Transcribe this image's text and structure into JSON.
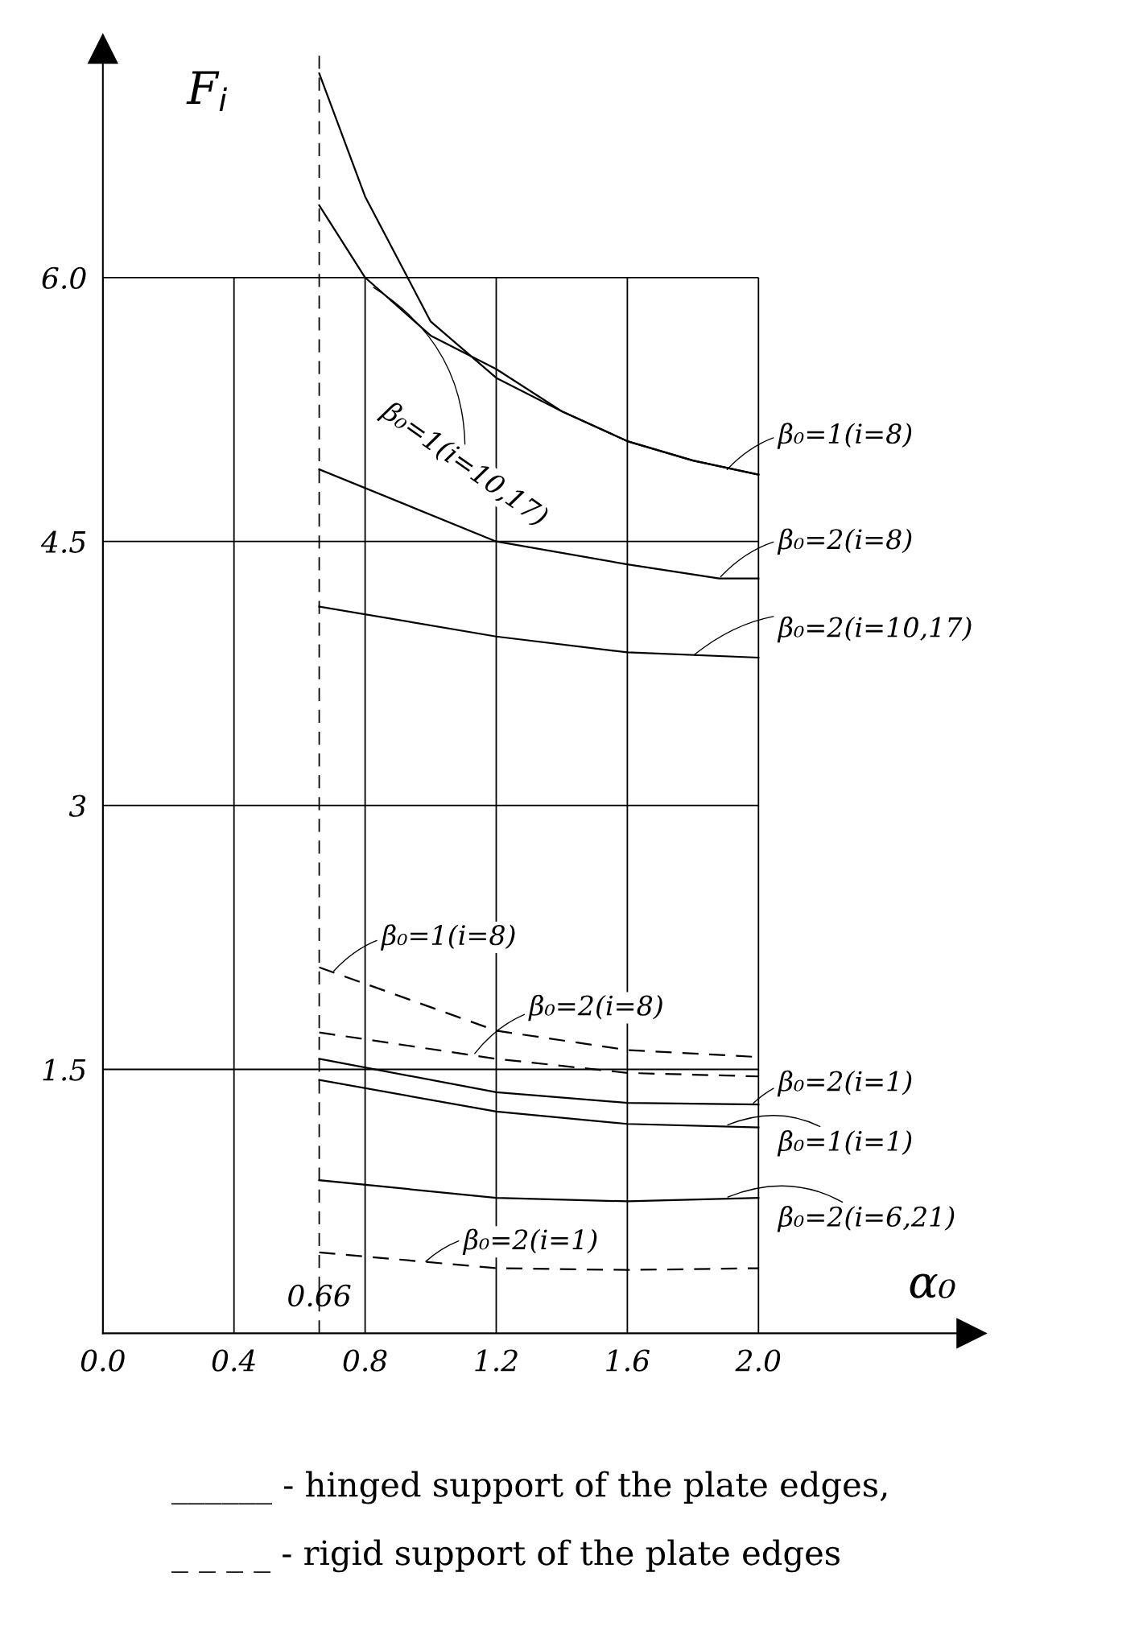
{
  "chart_data": {
    "type": "line",
    "xlabel": "α₀",
    "ylabel": "F$_{i}$",
    "xlim": [
      0,
      2.65
    ],
    "ylim": [
      0,
      7.3
    ],
    "xticks": [
      {
        "value": 0,
        "label": "0.0"
      },
      0.4,
      0.8,
      1.2,
      1.6,
      {
        "value": 2,
        "label": "2.0"
      }
    ],
    "yticks": [
      1.5,
      3,
      4.5,
      {
        "value": 6,
        "label": "6.0"
      }
    ],
    "grid": true,
    "marker": "none",
    "series": [
      {
        "color": "#000000",
        "line_style": "solid",
        "x": [
          0.66,
          0.8,
          1.0,
          1.2,
          1.4,
          1.6,
          1.8,
          2.0
        ],
        "values": [
          7.16,
          6.46,
          5.75,
          5.43,
          5.24,
          5.07,
          4.96,
          4.88
        ]
      },
      {
        "color": "#000000",
        "line_style": "solid",
        "x": [
          0.66,
          0.8,
          1.0,
          1.2,
          1.4,
          1.6,
          1.8,
          2.0
        ],
        "values": [
          6.41,
          6.0,
          5.67,
          5.48,
          5.24,
          5.07,
          4.96,
          4.88
        ]
      },
      {
        "color": "#000000",
        "line_style": "solid",
        "x": [
          0.66,
          1.2,
          1.6,
          1.88,
          2.0
        ],
        "values": [
          4.91,
          4.5,
          4.37,
          4.29,
          4.29
        ]
      },
      {
        "color": "#000000",
        "line_style": "solid",
        "x": [
          0.66,
          1.2,
          1.6,
          2.0
        ],
        "values": [
          4.13,
          3.96,
          3.87,
          3.84
        ]
      },
      {
        "color": "#000000",
        "line_style": "dashed",
        "x": [
          0.66,
          1.2,
          1.6,
          2.0
        ],
        "values": [
          2.08,
          1.72,
          1.61,
          1.57
        ]
      },
      {
        "color": "#000000",
        "line_style": "dashed",
        "x": [
          0.66,
          1.2,
          1.6,
          2.0
        ],
        "values": [
          1.71,
          1.56,
          1.48,
          1.46
        ]
      },
      {
        "color": "#000000",
        "line_style": "solid",
        "x": [
          0.66,
          1.2,
          1.6,
          2.0
        ],
        "values": [
          1.56,
          1.37,
          1.31,
          1.3
        ]
      },
      {
        "color": "#000000",
        "line_style": "solid",
        "x": [
          0.66,
          1.2,
          1.6,
          2.0
        ],
        "values": [
          1.44,
          1.26,
          1.19,
          1.17
        ]
      },
      {
        "color": "#000000",
        "line_style": "solid",
        "x": [
          0.66,
          1.2,
          1.6,
          2.0
        ],
        "values": [
          0.87,
          0.77,
          0.75,
          0.77
        ]
      },
      {
        "color": "#000000",
        "line_style": "dashed",
        "x": [
          0.66,
          1.2,
          1.6,
          2.0
        ],
        "values": [
          0.46,
          0.37,
          0.36,
          0.37
        ]
      }
    ],
    "ref_lines": [
      {
        "axis": "x",
        "value": 0.66,
        "label": "0.66",
        "line_style": "dashed",
        "color": "#000000"
      }
    ],
    "annotations": [
      {
        "text": "β₀=1(i=8)",
        "x": 1.9,
        "y": 4.9
      },
      {
        "text": "β₀=1(i=10,17)",
        "x": 0.82,
        "y": 5.95
      },
      {
        "text": "β₀=2(i=8)",
        "x": 1.88,
        "y": 4.29
      },
      {
        "text": "β₀=2(i=10,17)",
        "x": 1.8,
        "y": 3.85
      },
      {
        "text": "β₀=1(i=8)",
        "x": 0.7,
        "y": 2.05
      },
      {
        "text": "β₀=2(i=8)",
        "x": 1.13,
        "y": 1.58
      },
      {
        "text": "β₀=2(i=1)",
        "x": 1.98,
        "y": 1.3
      },
      {
        "text": "β₀=1(i=1)",
        "x": 1.9,
        "y": 1.18
      },
      {
        "text": "β₀=2(i=6,21)",
        "x": 1.9,
        "y": 0.77
      },
      {
        "text": "β₀=2(i=1)",
        "x": 0.98,
        "y": 0.4
      },
      "______ - hinged support of the plate edges,",
      "_ _ _ _ - rigid support of the plate edges"
    ]
  }
}
